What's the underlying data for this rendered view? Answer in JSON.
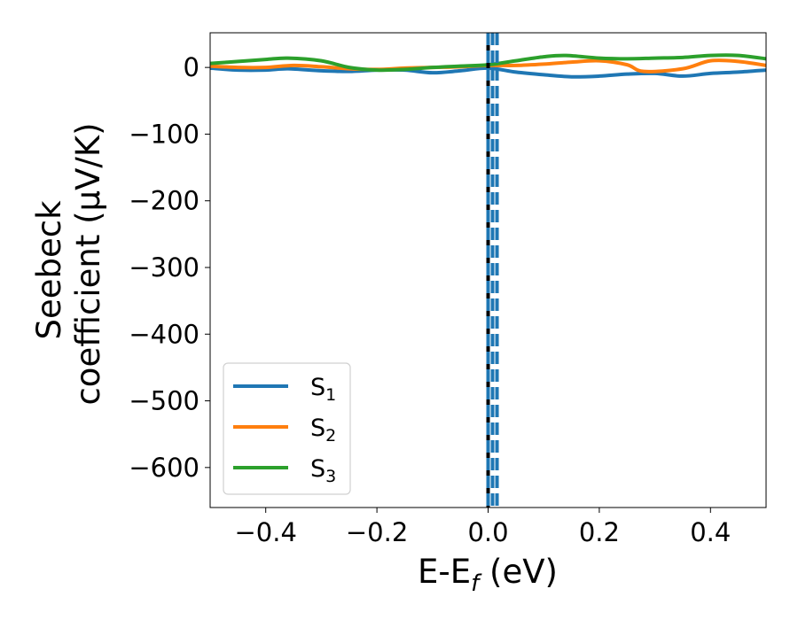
{
  "chart_data": {
    "type": "line",
    "title": "",
    "xlabel": "E-E_f (eV)",
    "ylabel": "Seebeck  coefficient  (μV/K)",
    "xlim": [
      -0.5,
      0.5
    ],
    "ylim": [
      -660,
      52
    ],
    "xticks": [
      -0.4,
      -0.2,
      0.0,
      0.2,
      0.4
    ],
    "xtick_labels": [
      "−0.4",
      "−0.2",
      "0.0",
      "0.2",
      "0.4"
    ],
    "yticks": [
      0,
      -100,
      -200,
      -300,
      -400,
      -500,
      -600
    ],
    "ytick_labels": [
      "0",
      "−100",
      "−200",
      "−300",
      "−400",
      "−500",
      "−600"
    ],
    "grid": false,
    "legend_position": "lower-left",
    "vertical_lines": [
      {
        "x": 0.0,
        "style": "solid",
        "color": "#000000"
      },
      {
        "x": 0.0,
        "style": "dashed",
        "color": "#1f77b4"
      },
      {
        "x": 0.008,
        "style": "dashed",
        "color": "#1f77b4"
      },
      {
        "x": 0.016,
        "style": "dashed",
        "color": "#1f77b4"
      }
    ],
    "series": [
      {
        "name": "S1",
        "color": "#1f77b4",
        "x": [
          -0.5,
          -0.45,
          -0.4,
          -0.36,
          -0.3,
          -0.25,
          -0.2,
          -0.15,
          -0.1,
          -0.05,
          0.0,
          0.05,
          0.1,
          0.15,
          0.2,
          0.25,
          0.3,
          0.35,
          0.4,
          0.45,
          0.5
        ],
        "y": [
          -1,
          -4,
          -4,
          -2,
          -5,
          -6,
          -4,
          -4,
          -8,
          -5,
          -1,
          -7,
          -11,
          -14,
          -13,
          -10,
          -9,
          -13,
          -9,
          -7,
          -4
        ]
      },
      {
        "name": "S2",
        "color": "#ff7f0e",
        "x": [
          -0.5,
          -0.45,
          -0.4,
          -0.35,
          -0.3,
          -0.25,
          -0.2,
          -0.15,
          -0.1,
          -0.05,
          0.0,
          0.05,
          0.1,
          0.15,
          0.2,
          0.25,
          0.28,
          0.35,
          0.4,
          0.45,
          0.5
        ],
        "y": [
          2,
          0,
          0,
          3,
          1,
          -2,
          -3,
          -1,
          0,
          1,
          3,
          3,
          5,
          8,
          10,
          4,
          -6,
          -2,
          10,
          9,
          3
        ]
      },
      {
        "name": "S3",
        "color": "#2ca02c",
        "x": [
          -0.5,
          -0.45,
          -0.4,
          -0.36,
          -0.3,
          -0.25,
          -0.2,
          -0.15,
          -0.1,
          -0.05,
          0.0,
          0.05,
          0.1,
          0.14,
          0.2,
          0.25,
          0.3,
          0.35,
          0.4,
          0.45,
          0.5
        ],
        "y": [
          6,
          9,
          12,
          14,
          10,
          0,
          -4,
          -3,
          0,
          2,
          4,
          10,
          16,
          18,
          14,
          13,
          14,
          15,
          18,
          18,
          13
        ]
      }
    ]
  },
  "legend": [
    {
      "base": "S",
      "sub": "1"
    },
    {
      "base": "S",
      "sub": "2"
    },
    {
      "base": "S",
      "sub": "3"
    }
  ],
  "axis_labels": {
    "x_main": "E-E",
    "x_sub": "f",
    "x_unit": " (eV)",
    "y_line1": "Seebeck",
    "y_line2": "coefficient  (μV/K)"
  }
}
